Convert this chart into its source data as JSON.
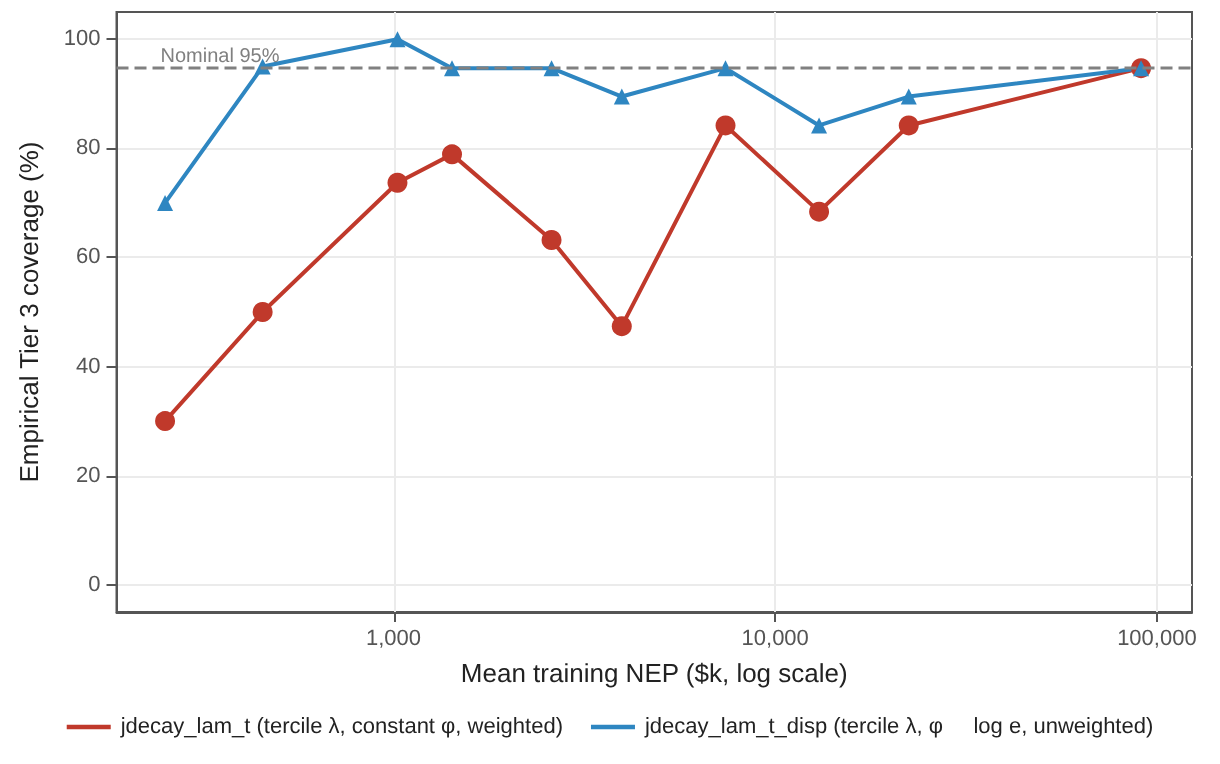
{
  "chart_data": {
    "type": "line",
    "xlabel": "Mean training NEP ($k, log scale)",
    "ylabel": "Empirical Tier 3 coverage (%)",
    "x": [
      252,
      454,
      1024,
      1423,
      2594,
      3963,
      7410,
      13030,
      22380,
      90900
    ],
    "series": [
      {
        "name": "jdecay_lam_t (tercile λ, constant φ, weighted)",
        "color": "#c0392b",
        "marker": "circle",
        "values": [
          30,
          50,
          73.7,
          78.9,
          63.2,
          47.4,
          84.2,
          68.4,
          84.2,
          94.7
        ]
      },
      {
        "name": "jdecay_lam_t_disp (tercile λ, φ     log e, unweighted)",
        "color": "#2e86c1",
        "marker": "triangle",
        "values": [
          70,
          95,
          100,
          94.7,
          94.7,
          89.5,
          94.7,
          84.2,
          89.5,
          94.7
        ]
      }
    ],
    "log": "x",
    "xlim": [
      188,
      123600
    ],
    "xticks": [
      {
        "value": 1000,
        "label": "1,000"
      },
      {
        "value": 10000,
        "label": "10,000"
      },
      {
        "value": 100000,
        "label": "100,000"
      }
    ],
    "ylim": [
      -5,
      105
    ],
    "yticks": [
      0,
      20,
      40,
      60,
      80,
      100
    ],
    "ref_lines": [
      {
        "axis": "y",
        "value": 95,
        "label": "Nominal 95%",
        "color": "#808080",
        "line_style": "dashed"
      }
    ],
    "grid": true,
    "legend": "bottom",
    "line_style": "solid"
  }
}
